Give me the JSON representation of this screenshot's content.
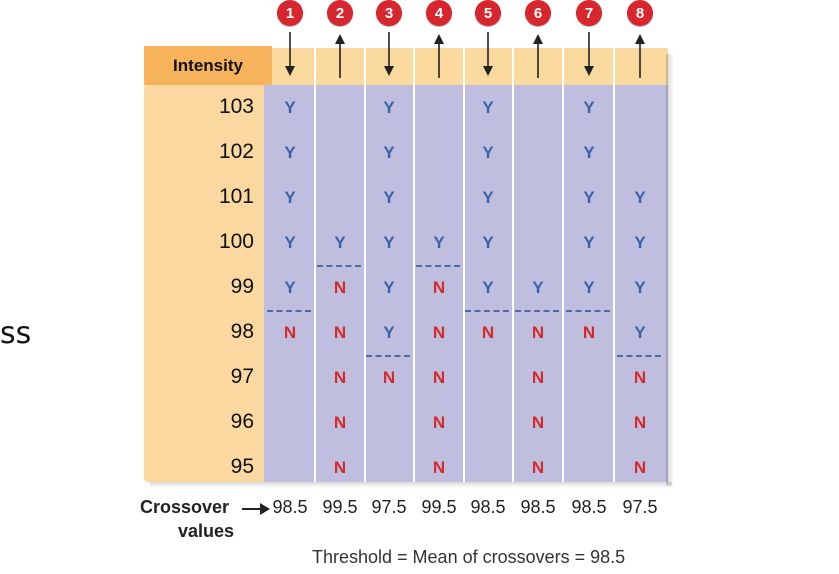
{
  "fragment_text": "ss",
  "intensity_header": "Intensity",
  "intensity_levels": [
    "103",
    "102",
    "101",
    "100",
    "99",
    "98",
    "97",
    "96",
    "95"
  ],
  "trials": [
    {
      "label": "1",
      "direction": "down",
      "cells": [
        "Y",
        "Y",
        "Y",
        "Y",
        "Y",
        "N",
        "",
        "",
        ""
      ],
      "crossover": "98.5",
      "threshold_after_index": 4
    },
    {
      "label": "2",
      "direction": "up",
      "cells": [
        "",
        "",
        "",
        "Y",
        "N",
        "N",
        "N",
        "N",
        "N"
      ],
      "crossover": "99.5",
      "threshold_after_index": 3
    },
    {
      "label": "3",
      "direction": "down",
      "cells": [
        "Y",
        "Y",
        "Y",
        "Y",
        "Y",
        "Y",
        "N",
        "",
        ""
      ],
      "crossover": "97.5",
      "threshold_after_index": 5
    },
    {
      "label": "4",
      "direction": "up",
      "cells": [
        "",
        "",
        "",
        "Y",
        "N",
        "N",
        "N",
        "N",
        "N"
      ],
      "crossover": "99.5",
      "threshold_after_index": 3
    },
    {
      "label": "5",
      "direction": "down",
      "cells": [
        "Y",
        "Y",
        "Y",
        "Y",
        "Y",
        "N",
        "",
        "",
        ""
      ],
      "crossover": "98.5",
      "threshold_after_index": 4
    },
    {
      "label": "6",
      "direction": "up",
      "cells": [
        "",
        "",
        "",
        "",
        "Y",
        "N",
        "N",
        "N",
        "N"
      ],
      "crossover": "98.5",
      "threshold_after_index": 4
    },
    {
      "label": "7",
      "direction": "down",
      "cells": [
        "Y",
        "Y",
        "Y",
        "Y",
        "Y",
        "N",
        "",
        "",
        ""
      ],
      "crossover": "98.5",
      "threshold_after_index": 4
    },
    {
      "label": "8",
      "direction": "up",
      "cells": [
        "",
        "",
        "Y",
        "Y",
        "Y",
        "Y",
        "N",
        "N",
        "N"
      ],
      "crossover": "97.5",
      "threshold_after_index": 5
    }
  ],
  "crossover_label_line1": "Crossover",
  "crossover_label_line2": "values",
  "threshold_text": "Threshold = Mean of crossovers = 98.5",
  "colors": {
    "yes": "#3a62a8",
    "no": "#d32a2a",
    "trial_circle": "#d8262e",
    "grid": "#c0bedf",
    "header": "#f6b35c",
    "panel": "#fbd8a0"
  }
}
